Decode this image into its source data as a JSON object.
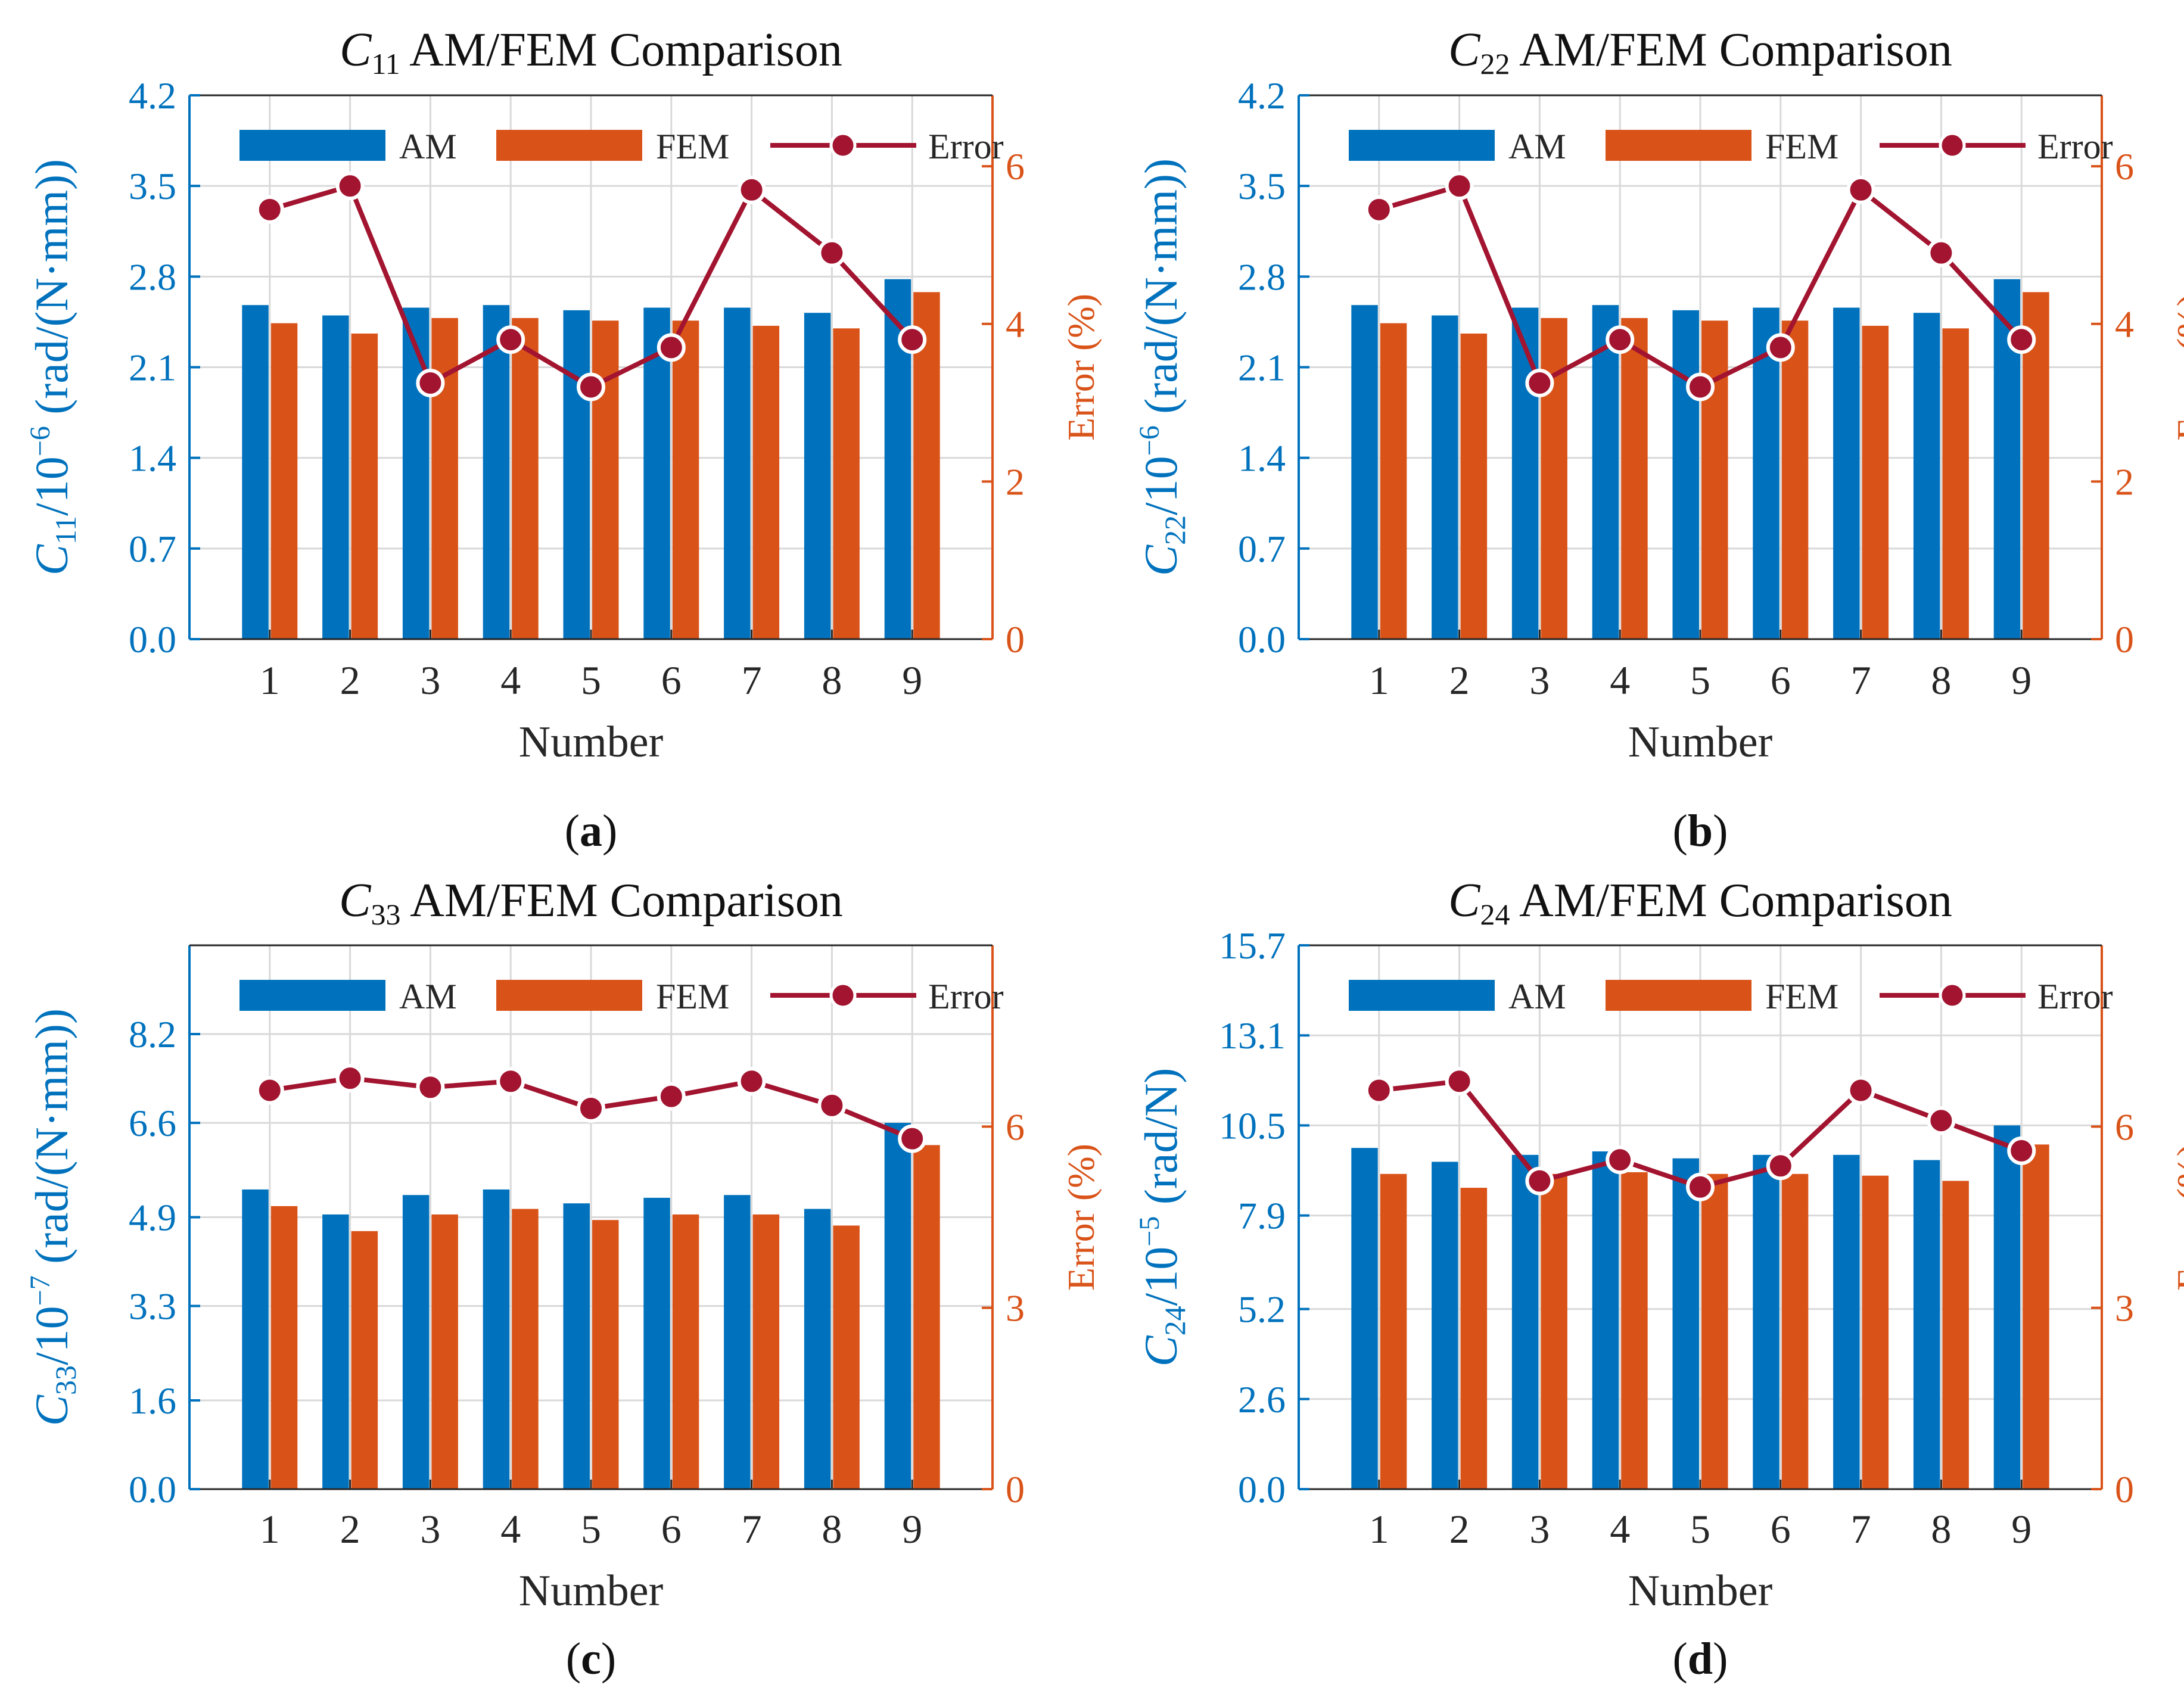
{
  "figure": {
    "panel_labels": [
      "a",
      "b",
      "c",
      "d"
    ]
  },
  "colors": {
    "am": "#0072BD",
    "fem": "#D95319",
    "error": "#A2142F",
    "left_axis": "#0072BD",
    "right_axis": "#D95319",
    "grid": "#d9d9d9",
    "axis_dark": "#262626"
  },
  "chart_data": [
    {
      "type": "bar",
      "panel": "a",
      "title_symbol": "C",
      "title_subscript": "11",
      "title_rest": " AM/FEM Comparison",
      "xlabel": "Number",
      "ylabel_symbol": "C",
      "ylabel_subscript": "11",
      "ylabel_exp_base": "/10",
      "ylabel_exp": "−6",
      "ylabel_unit": " (rad/(N·mm))",
      "right_ylabel": "Error (%)",
      "categories": [
        "1",
        "2",
        "3",
        "4",
        "5",
        "6",
        "7",
        "8",
        "9"
      ],
      "series": [
        {
          "name": "AM",
          "values": [
            2.58,
            2.5,
            2.56,
            2.58,
            2.54,
            2.56,
            2.56,
            2.52,
            2.78
          ]
        },
        {
          "name": "FEM",
          "values": [
            2.44,
            2.36,
            2.48,
            2.48,
            2.46,
            2.46,
            2.42,
            2.4,
            2.68
          ]
        }
      ],
      "error": {
        "name": "Error",
        "values": [
          5.45,
          5.75,
          3.25,
          3.8,
          3.2,
          3.7,
          5.7,
          4.9,
          3.8
        ]
      },
      "ylim": [
        0,
        4.2
      ],
      "yticks": [
        "0.0",
        "0.7",
        "1.4",
        "2.1",
        "2.8",
        "3.5",
        "4.2"
      ],
      "right_ylim": [
        0,
        6.9
      ],
      "right_yticks": [
        "0",
        "2",
        "4",
        "6"
      ],
      "right_ytick_values": [
        0,
        2,
        4,
        6
      ],
      "legend": [
        "AM",
        "FEM",
        "Error"
      ],
      "legend_position": "top",
      "grid": true
    },
    {
      "type": "bar",
      "panel": "b",
      "title_symbol": "C",
      "title_subscript": "22",
      "title_rest": " AM/FEM Comparison",
      "xlabel": "Number",
      "ylabel_symbol": "C",
      "ylabel_subscript": "22",
      "ylabel_exp_base": "/10",
      "ylabel_exp": "−6",
      "ylabel_unit": " (rad/(N·mm))",
      "right_ylabel": "Error (%)",
      "categories": [
        "1",
        "2",
        "3",
        "4",
        "5",
        "6",
        "7",
        "8",
        "9"
      ],
      "series": [
        {
          "name": "AM",
          "values": [
            2.58,
            2.5,
            2.56,
            2.58,
            2.54,
            2.56,
            2.56,
            2.52,
            2.78
          ]
        },
        {
          "name": "FEM",
          "values": [
            2.44,
            2.36,
            2.48,
            2.48,
            2.46,
            2.46,
            2.42,
            2.4,
            2.68
          ]
        }
      ],
      "error": {
        "name": "Error",
        "values": [
          5.45,
          5.75,
          3.25,
          3.8,
          3.2,
          3.7,
          5.7,
          4.9,
          3.8
        ]
      },
      "ylim": [
        0,
        4.2
      ],
      "yticks": [
        "0.0",
        "0.7",
        "1.4",
        "2.1",
        "2.8",
        "3.5",
        "4.2"
      ],
      "right_ylim": [
        0,
        6.9
      ],
      "right_yticks": [
        "0",
        "2",
        "4",
        "6"
      ],
      "right_ytick_values": [
        0,
        2,
        4,
        6
      ],
      "legend": [
        "AM",
        "FEM",
        "Error"
      ],
      "legend_position": "top",
      "grid": true
    },
    {
      "type": "bar",
      "panel": "c",
      "title_symbol": "C",
      "title_subscript": "33",
      "title_rest": " AM/FEM Comparison",
      "xlabel": "Number",
      "ylabel_symbol": "C",
      "ylabel_subscript": "33",
      "ylabel_exp_base": "/10",
      "ylabel_exp": "−7",
      "ylabel_unit": " (rad/(N·mm))",
      "right_ylabel": "Error (%)",
      "categories": [
        "1",
        "2",
        "3",
        "4",
        "5",
        "6",
        "7",
        "8",
        "9"
      ],
      "series": [
        {
          "name": "AM",
          "values": [
            5.4,
            4.95,
            5.3,
            5.4,
            5.15,
            5.25,
            5.3,
            5.05,
            6.6
          ]
        },
        {
          "name": "FEM",
          "values": [
            5.1,
            4.65,
            4.95,
            5.05,
            4.85,
            4.95,
            4.95,
            4.75,
            6.2
          ]
        }
      ],
      "error": {
        "name": "Error",
        "values": [
          6.6,
          6.8,
          6.65,
          6.75,
          6.3,
          6.5,
          6.75,
          6.35,
          5.8
        ]
      },
      "ylim": [
        0,
        9.8
      ],
      "yticks": [
        "0.0",
        "1.6",
        "3.3",
        "4.9",
        "6.6",
        "8.2"
      ],
      "ytick_values": [
        0,
        1.6,
        3.3,
        4.9,
        6.6,
        8.2
      ],
      "right_ylim": [
        0,
        9
      ],
      "right_yticks": [
        "0",
        "3",
        "6"
      ],
      "right_ytick_values": [
        0,
        3,
        6
      ],
      "legend": [
        "AM",
        "FEM",
        "Error"
      ],
      "legend_position": "top",
      "grid": true
    },
    {
      "type": "bar",
      "panel": "d",
      "title_symbol": "C",
      "title_subscript": "24",
      "title_rest": " AM/FEM Comparison",
      "xlabel": "Number",
      "ylabel_symbol": "C",
      "ylabel_subscript": "24",
      "ylabel_exp_base": "/10",
      "ylabel_exp": "−5",
      "ylabel_unit": " (rad/N)",
      "right_ylabel": "Error (%)",
      "categories": [
        "1",
        "2",
        "3",
        "4",
        "5",
        "6",
        "7",
        "8",
        "9"
      ],
      "series": [
        {
          "name": "AM",
          "values": [
            9.85,
            9.45,
            9.65,
            9.75,
            9.55,
            9.65,
            9.65,
            9.5,
            10.5
          ]
        },
        {
          "name": "FEM",
          "values": [
            9.1,
            8.7,
            9.1,
            9.15,
            9.1,
            9.1,
            9.05,
            8.9,
            9.95
          ]
        }
      ],
      "error": {
        "name": "Error",
        "values": [
          6.6,
          6.75,
          5.1,
          5.45,
          5.0,
          5.35,
          6.6,
          6.1,
          5.6
        ]
      },
      "ylim": [
        0,
        15.7
      ],
      "yticks": [
        "0.0",
        "2.6",
        "5.2",
        "7.9",
        "10.5",
        "13.1",
        "15.7"
      ],
      "ytick_values": [
        0,
        2.6,
        5.2,
        7.9,
        10.5,
        13.1,
        15.7
      ],
      "right_ylim": [
        0,
        9
      ],
      "right_yticks": [
        "0",
        "3",
        "6"
      ],
      "right_ytick_values": [
        0,
        3,
        6
      ],
      "legend": [
        "AM",
        "FEM",
        "Error"
      ],
      "legend_position": "top",
      "grid": true
    }
  ]
}
